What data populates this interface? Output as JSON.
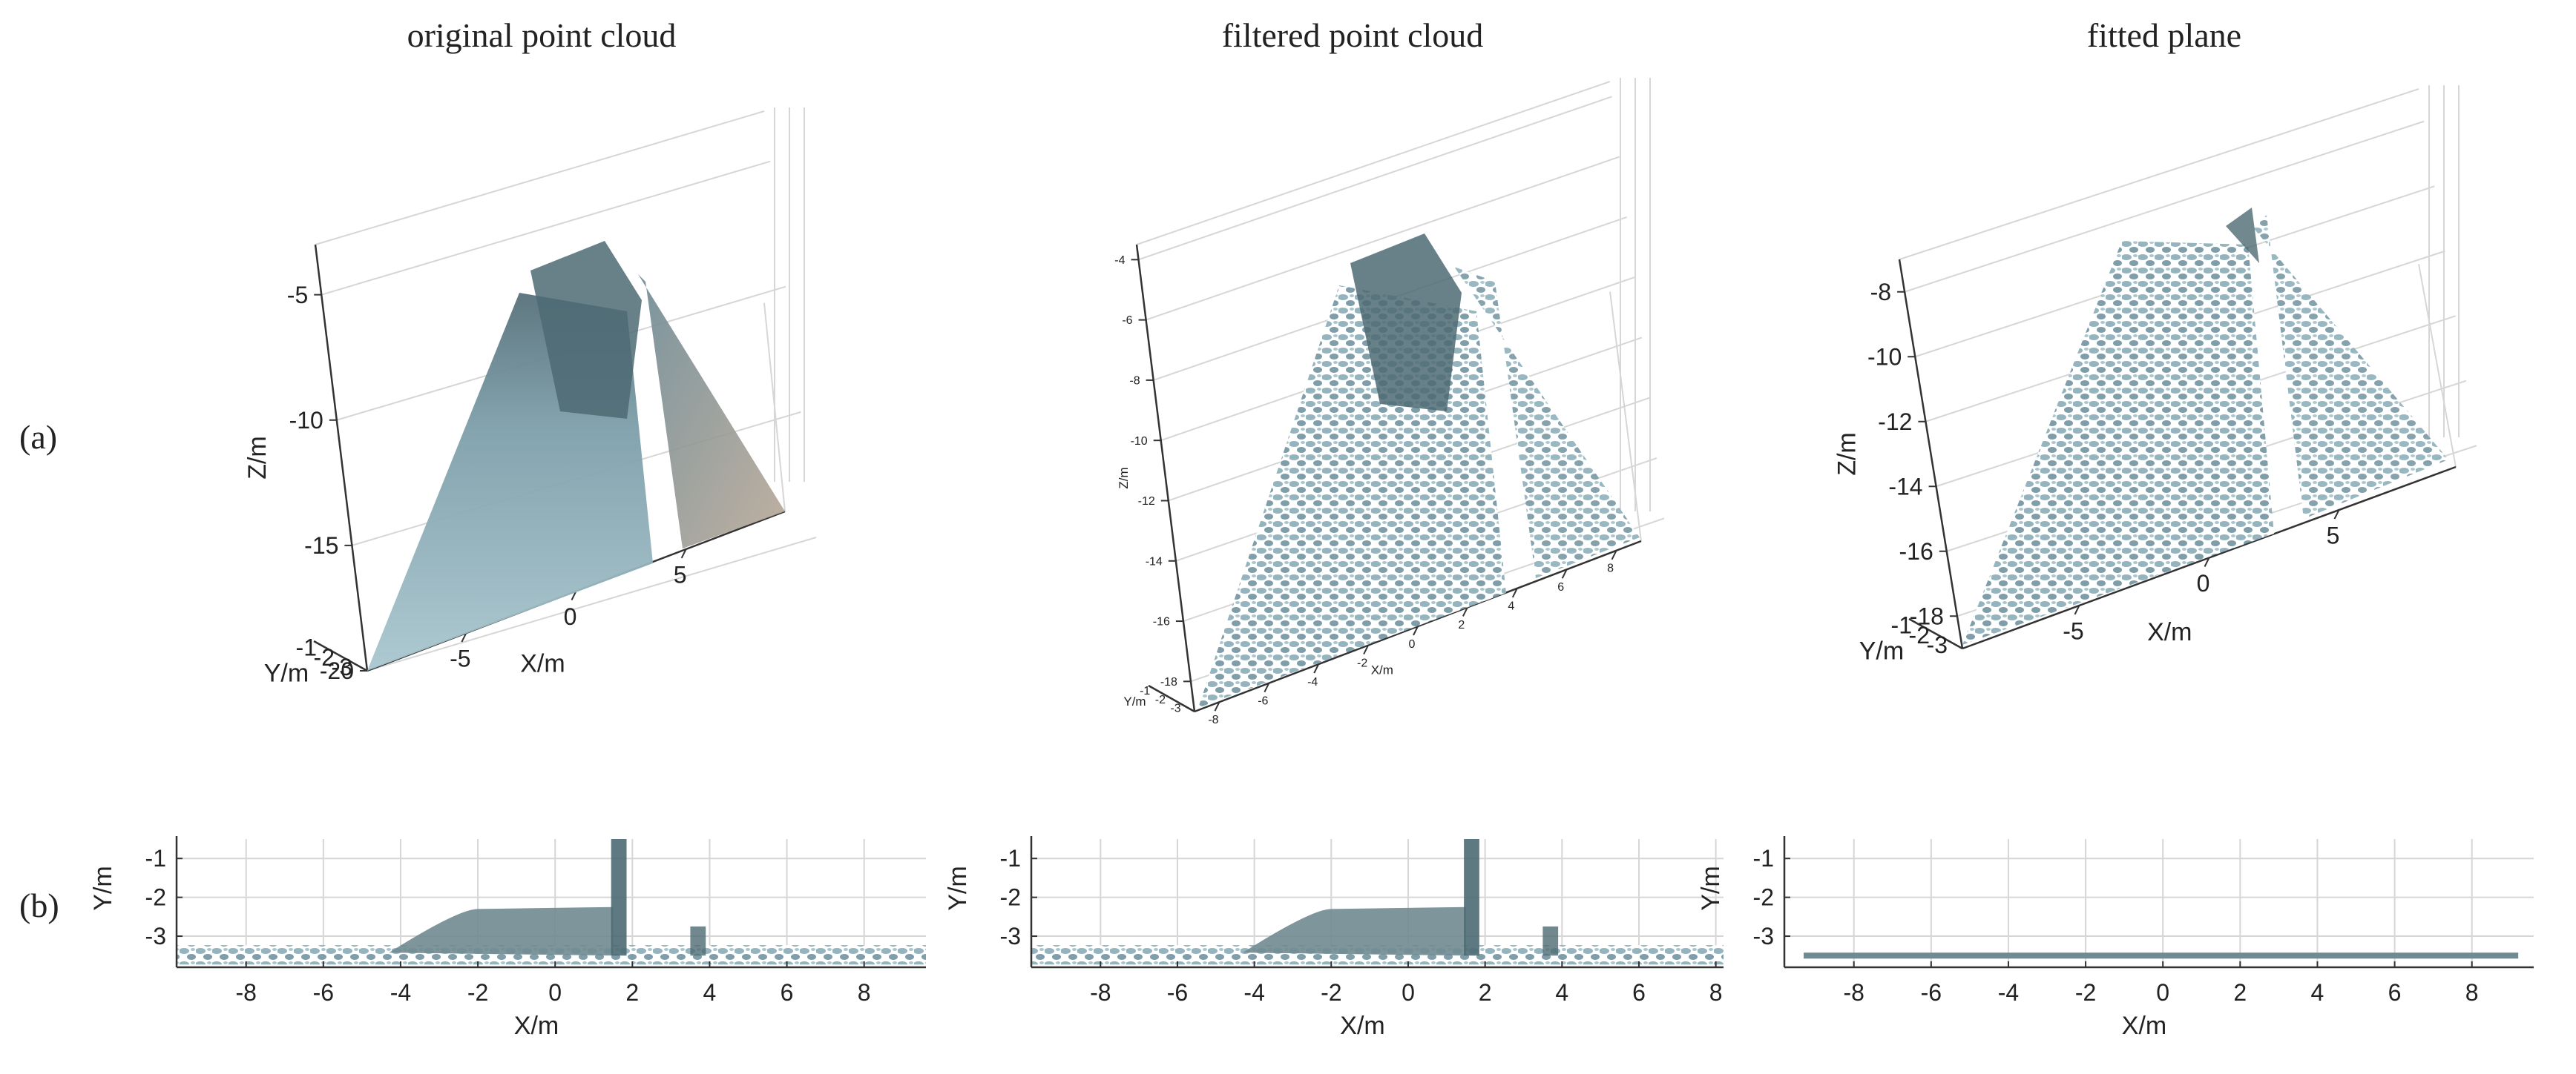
{
  "figure": {
    "panel_titles": [
      "original point cloud",
      "filtered point cloud",
      "fitted plane"
    ],
    "row_labels": [
      "(a)",
      "(b)"
    ],
    "point_color": "#8fb0bb",
    "point_color_dark": "#4d6a73",
    "grid_color": "#d6d6d6"
  },
  "chart_data": [
    {
      "type": "scatter",
      "panel": "(a) original point cloud",
      "projection": "3d",
      "xlabel": "X/m",
      "ylabel": "Y/m",
      "zlabel": "Z/m",
      "x_ticks": [
        -5,
        0,
        5
      ],
      "y_ticks": [
        -1,
        -2,
        -3
      ],
      "z_ticks": [
        -5,
        -10,
        -15,
        -20
      ],
      "xlim": [
        -9.5,
        9.5
      ],
      "ylim": [
        -3.5,
        -0.5
      ],
      "zlim": [
        -20,
        -3
      ]
    },
    {
      "type": "scatter",
      "panel": "(a) filtered point cloud",
      "projection": "3d",
      "xlabel": "X/m",
      "ylabel": "Y/m",
      "zlabel": "Z/m",
      "x_ticks": [
        -8,
        -6,
        -4,
        -2,
        0,
        2,
        4,
        6,
        8
      ],
      "y_ticks": [
        -1,
        -2,
        -3
      ],
      "z_ticks": [
        -4,
        -6,
        -8,
        -10,
        -12,
        -14,
        -16,
        -18
      ],
      "xlim": [
        -9,
        9
      ],
      "ylim": [
        -3.5,
        -0.5
      ],
      "zlim": [
        -19,
        -3.5
      ]
    },
    {
      "type": "scatter",
      "panel": "(a) fitted plane",
      "projection": "3d",
      "xlabel": "X/m",
      "ylabel": "Y/m",
      "zlabel": "Z/m",
      "x_ticks": [
        -5,
        0,
        5
      ],
      "y_ticks": [
        -1,
        -2,
        -3
      ],
      "z_ticks": [
        -8,
        -10,
        -12,
        -14,
        -16,
        -18
      ],
      "xlim": [
        -9.5,
        9.5
      ],
      "ylim": [
        -3.5,
        -0.5
      ],
      "zlim": [
        -19,
        -7
      ]
    },
    {
      "type": "scatter",
      "panel": "(b) original point cloud",
      "projection": "xy",
      "xlabel": "X/m",
      "ylabel": "Y/m",
      "x_ticks": [
        -8,
        -6,
        -4,
        -2,
        0,
        2,
        4,
        6,
        8
      ],
      "y_ticks": [
        -1,
        -2,
        -3
      ],
      "xlim": [
        -9.8,
        9.6
      ],
      "ylim": [
        -3.8,
        -0.5
      ]
    },
    {
      "type": "scatter",
      "panel": "(b) filtered point cloud",
      "projection": "xy",
      "xlabel": "X/m",
      "ylabel": "Y/m",
      "x_ticks": [
        -8,
        -6,
        -4,
        -2,
        0,
        2,
        4,
        6,
        8
      ],
      "y_ticks": [
        -1,
        -2,
        -3
      ],
      "xlim": [
        -9.8,
        8.2
      ],
      "ylim": [
        -3.8,
        -0.5
      ]
    },
    {
      "type": "scatter",
      "panel": "(b) fitted plane",
      "projection": "xy",
      "xlabel": "X/m",
      "ylabel": "Y/m",
      "x_ticks": [
        -8,
        -6,
        -4,
        -2,
        0,
        2,
        4,
        6,
        8
      ],
      "y_ticks": [
        -1,
        -2,
        -3
      ],
      "xlim": [
        -9.8,
        9.6
      ],
      "ylim": [
        -3.8,
        -0.5
      ]
    }
  ]
}
